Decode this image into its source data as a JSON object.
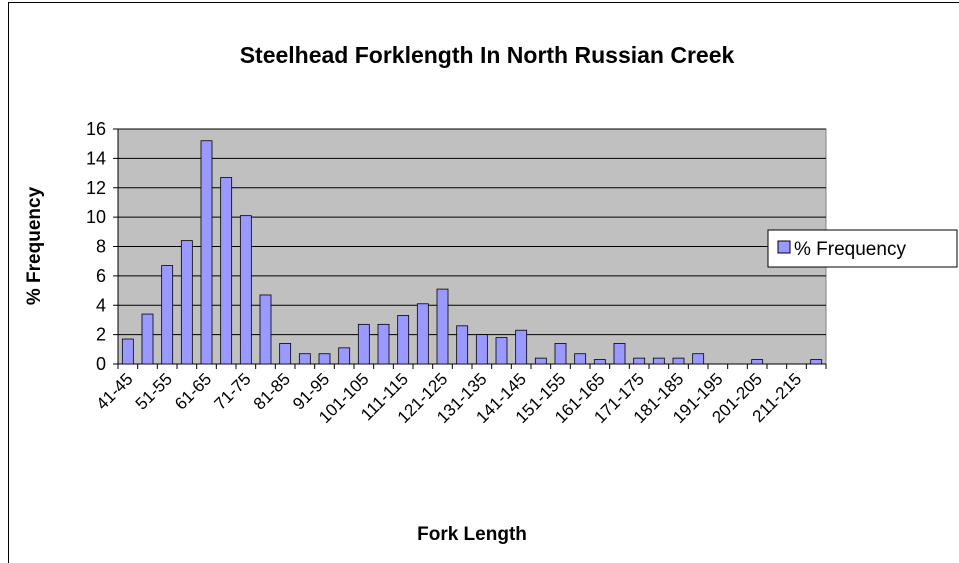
{
  "chart_data": {
    "type": "bar",
    "title": "Steelhead Forklength In North Russian Creek",
    "x_label": "Fork Length",
    "y_label": "% Frequency",
    "categories": [
      "41-45",
      null,
      "51-55",
      null,
      "61-65",
      null,
      "71-75",
      null,
      "81-85",
      null,
      "91-95",
      null,
      "101-105",
      null,
      "111-115",
      null,
      "121-125",
      null,
      "131-135",
      null,
      "141-145",
      null,
      "151-155",
      null,
      "161-165",
      null,
      "171-175",
      null,
      "181-185",
      null,
      "191-195",
      null,
      "201-205",
      null,
      "211-215",
      null
    ],
    "series": [
      {
        "name": "% Frequency",
        "color": "#9999ff",
        "values": [
          1.7,
          3.4,
          6.7,
          8.4,
          15.2,
          12.7,
          10.1,
          4.7,
          1.4,
          0.7,
          0.7,
          1.1,
          2.7,
          2.7,
          3.3,
          4.1,
          5.1,
          2.6,
          2.0,
          1.8,
          2.3,
          0.4,
          1.4,
          0.7,
          0.3,
          1.4,
          0.4,
          0.4,
          0.4,
          0.7,
          0,
          0,
          0.3,
          0,
          0,
          0.3
        ]
      }
    ],
    "ylim": [
      0,
      16
    ],
    "yticks": [
      0,
      2,
      4,
      6,
      8,
      10,
      12,
      14,
      16
    ],
    "grid": true,
    "legend": "right",
    "plot_background": "#c0c0c0"
  }
}
